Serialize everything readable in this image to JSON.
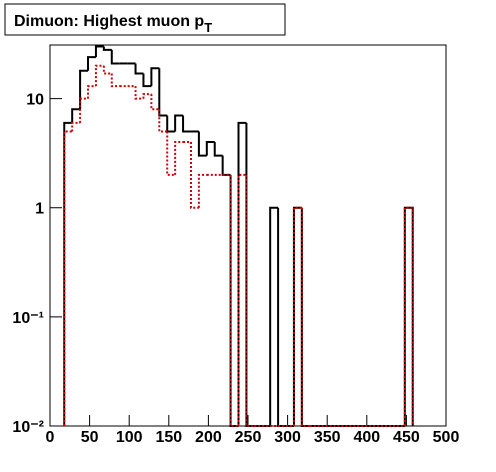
{
  "chart_data": {
    "type": "step-histogram",
    "title": "Dimuon: Highest muon p",
    "title_subscript": "T",
    "bins": [
      18,
      28,
      38,
      48,
      58,
      68,
      78,
      88,
      98,
      108,
      118,
      128,
      138,
      148,
      158,
      168,
      178,
      188,
      198,
      208,
      218,
      228,
      238,
      248,
      258,
      268,
      278,
      288,
      298,
      308,
      318,
      328,
      338,
      348,
      358,
      368,
      378,
      388,
      398,
      408,
      418,
      428,
      438,
      448,
      458
    ],
    "series": [
      {
        "color": "#000000",
        "line_style": "solid",
        "values": [
          6,
          8,
          18,
          24,
          30,
          28,
          21,
          21,
          21,
          17,
          13,
          19,
          7,
          5,
          7,
          5,
          5,
          3,
          4,
          3,
          2,
          0,
          6,
          0,
          0,
          0,
          1,
          0,
          0,
          1,
          0,
          0,
          0,
          0,
          0,
          0,
          0,
          0,
          0,
          0,
          0,
          0,
          0,
          1
        ]
      },
      {
        "color": "#cc0000",
        "line_style": "dotted",
        "values": [
          5,
          6,
          10,
          13,
          20,
          17,
          13,
          13,
          13,
          10,
          11,
          8,
          5,
          2,
          4,
          4,
          1,
          2,
          2,
          2,
          2,
          0,
          2,
          0,
          0,
          0,
          0,
          0,
          0,
          1,
          0,
          0,
          0,
          0,
          0,
          0,
          0,
          0,
          0,
          0,
          0,
          0,
          0,
          1
        ]
      }
    ],
    "xlim": [
      0,
      500
    ],
    "xticks": [
      0,
      50,
      100,
      150,
      200,
      250,
      300,
      350,
      400,
      450,
      500
    ],
    "ylim": [
      0.01,
      31
    ],
    "log_y": true,
    "yticks": [
      {
        "value": 0.01,
        "label": "10⁻²"
      },
      {
        "value": 0.1,
        "label": "10⁻¹"
      },
      1,
      10
    ]
  }
}
